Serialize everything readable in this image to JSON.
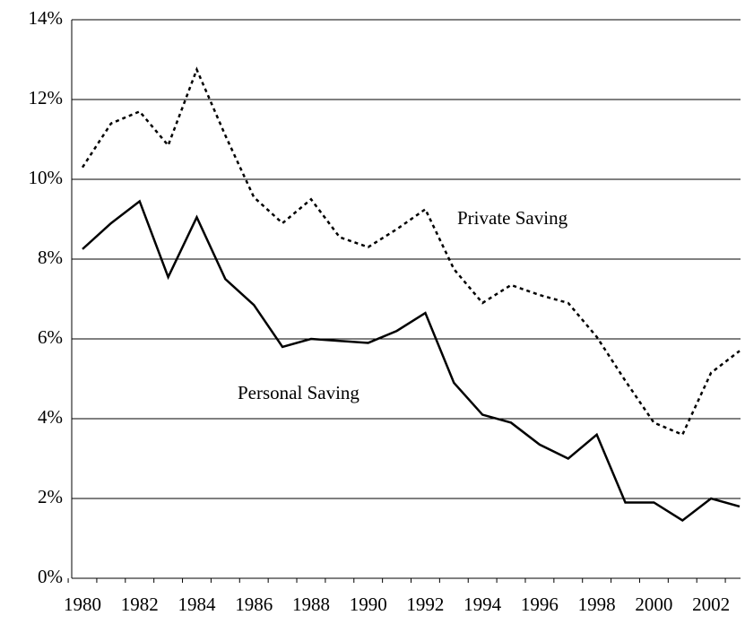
{
  "chart_data": {
    "type": "line",
    "categories": [
      "1980",
      null,
      "1982",
      null,
      "1984",
      null,
      "1986",
      null,
      "1988",
      null,
      "1990",
      null,
      "1992",
      null,
      "1994",
      null,
      "1996",
      null,
      "1998",
      null,
      "2000",
      null,
      "2002",
      null
    ],
    "series": [
      {
        "name": "Private Saving",
        "color": "#000000",
        "style": "dotted",
        "values": [
          10.3,
          11.4,
          11.7,
          10.85,
          12.75,
          11.1,
          9.55,
          8.9,
          9.5,
          8.55,
          8.3,
          8.75,
          9.25,
          7.75,
          6.9,
          7.35,
          7.1,
          6.9,
          6.05,
          4.95,
          3.9,
          3.6,
          5.15,
          5.7
        ]
      },
      {
        "name": "Personal Saving",
        "color": "#000000",
        "style": "solid",
        "values": [
          8.25,
          8.9,
          9.45,
          7.55,
          9.05,
          7.5,
          6.85,
          5.8,
          6.0,
          5.95,
          5.9,
          6.2,
          6.65,
          4.9,
          4.1,
          3.9,
          3.35,
          3.0,
          3.6,
          1.9,
          1.9,
          1.45,
          2.0,
          1.8
        ]
      }
    ],
    "ylim": [
      0,
      14
    ],
    "yticks": [
      {
        "value": 0,
        "label": "0%"
      },
      {
        "value": 2,
        "label": "2%"
      },
      {
        "value": 4,
        "label": "4%"
      },
      {
        "value": 6,
        "label": "6%"
      },
      {
        "value": 8,
        "label": "8%"
      },
      {
        "value": 10,
        "label": "10%"
      },
      {
        "value": 12,
        "label": "12%"
      },
      {
        "value": 14,
        "label": "14%"
      }
    ],
    "grid": true
  }
}
